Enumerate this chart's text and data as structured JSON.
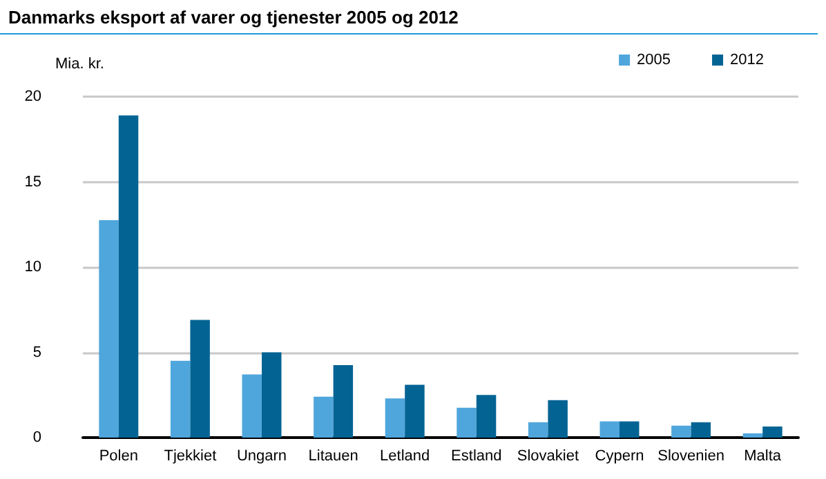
{
  "chart_data": {
    "type": "bar",
    "title": "Danmarks eksport af varer og tjenester 2005 og 2012",
    "ylabel": "Mia. kr.",
    "categories": [
      "Polen",
      "Tjekkiet",
      "Ungarn",
      "Litauen",
      "Letland",
      "Estland",
      "Slovakiet",
      "Cypern",
      "Slovenien",
      "Malta"
    ],
    "series": [
      {
        "name": "2005",
        "color": "#4fa6dc",
        "values": [
          12.75,
          4.5,
          3.7,
          2.4,
          2.3,
          1.75,
          0.9,
          0.95,
          0.7,
          0.25
        ]
      },
      {
        "name": "2012",
        "color": "#036494",
        "values": [
          18.9,
          6.9,
          5.0,
          4.25,
          3.1,
          2.5,
          2.2,
          0.95,
          0.9,
          0.65
        ]
      }
    ],
    "ylim": [
      0,
      20
    ],
    "yticks": [
      0,
      5,
      10,
      15,
      20
    ],
    "grid": "y",
    "legend": "top right"
  }
}
